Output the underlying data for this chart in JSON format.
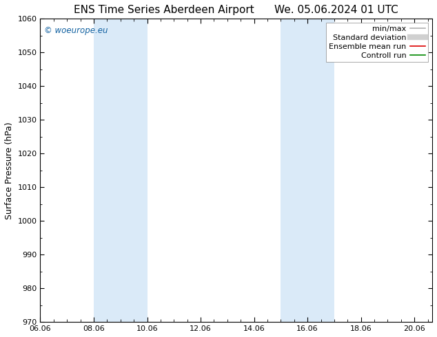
{
  "title_left": "ENS Time Series Aberdeen Airport",
  "title_right": "We. 05.06.2024 01 UTC",
  "ylabel": "Surface Pressure (hPa)",
  "ylim": [
    970,
    1060
  ],
  "yticks": [
    970,
    980,
    990,
    1000,
    1010,
    1020,
    1030,
    1040,
    1050,
    1060
  ],
  "xlim": [
    0,
    14.667
  ],
  "xtick_labels": [
    "06.06",
    "08.06",
    "10.06",
    "12.06",
    "14.06",
    "16.06",
    "18.06",
    "20.06"
  ],
  "xtick_positions": [
    0,
    2,
    4,
    6,
    8,
    10,
    12,
    14
  ],
  "shaded_bands": [
    {
      "xmin": 2.0,
      "xmax": 4.0
    },
    {
      "xmin": 9.0,
      "xmax": 11.0
    }
  ],
  "band_color": "#daeaf8",
  "watermark": "© woeurope.eu",
  "watermark_color": "#1060a0",
  "legend_items": [
    {
      "label": "min/max",
      "color": "#b0b0b0",
      "lw": 1.2
    },
    {
      "label": "Standard deviation",
      "color": "#d0d0d0",
      "lw": 6
    },
    {
      "label": "Ensemble mean run",
      "color": "#dd0000",
      "lw": 1.2
    },
    {
      "label": "Controll run",
      "color": "#008800",
      "lw": 1.2
    }
  ],
  "bg_color": "#ffffff",
  "title_fontsize": 11,
  "tick_fontsize": 8,
  "ylabel_fontsize": 9,
  "legend_fontsize": 8
}
